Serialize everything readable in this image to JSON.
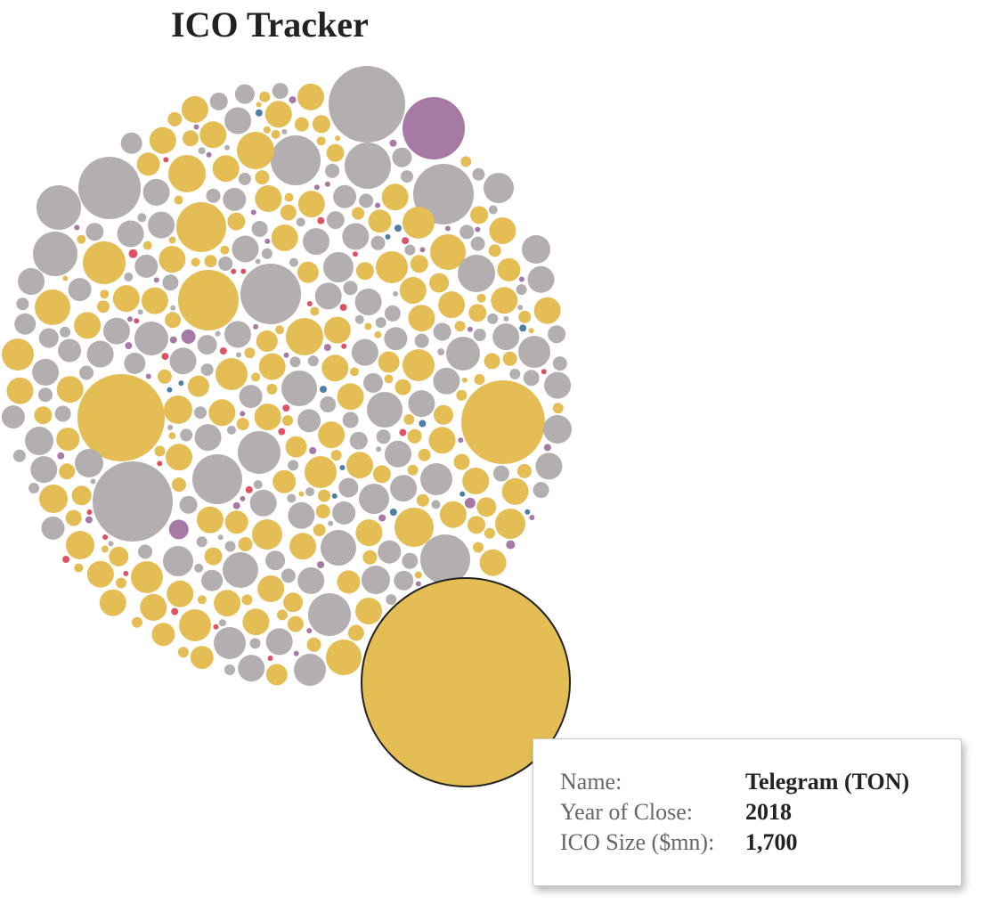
{
  "title": "ICO Tracker",
  "tooltip": {
    "name_label": "Name:",
    "name_value": "Telegram (TON)",
    "year_label": "Year of Close:",
    "year_value": "2018",
    "size_label": "ICO Size ($mn):",
    "size_value": "1,700"
  },
  "colors": {
    "gray": "#b3aeb0",
    "yellow": "#e4bd54",
    "purple": "#a77aa6",
    "red": "#dd5364",
    "blue": "#4f7fa4",
    "highlight_stroke": "#222222"
  },
  "chart_data": {
    "type": "bubble",
    "title": "ICO Tracker",
    "size_measure": "ICO Size ($mn)",
    "grid": false,
    "legend": "none",
    "highlighted": {
      "name": "Telegram (TON)",
      "year_of_close": 2018,
      "ico_size_mn": 1700,
      "category": "yellow"
    },
    "visible_bubble_counts_approx": {
      "gray": 235,
      "yellow": 245,
      "purple": 14,
      "red": 6,
      "blue": 6
    }
  }
}
